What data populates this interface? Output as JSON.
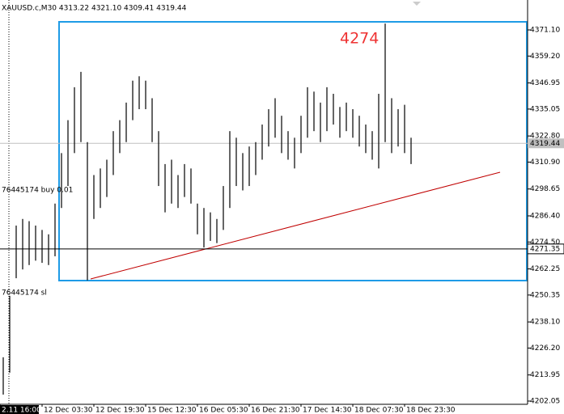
{
  "chart_data": {
    "type": "hilo",
    "title": "XAUUSD.c,M30  4313.22 4321.10 4309.41 4319.44",
    "color": "#000000",
    "lows": [
      4205,
      4215,
      4258,
      4262,
      4264,
      4266,
      4265,
      4264,
      4268,
      4290,
      4300,
      4315,
      4320,
      4257,
      4285,
      4290,
      4295,
      4305,
      4315,
      4320,
      4330,
      4335,
      4335,
      4320,
      4300,
      4288,
      4292,
      4290,
      4295,
      4292,
      4278,
      4272,
      4275,
      4274,
      4280,
      4290,
      4300,
      4298,
      4300,
      4305,
      4312,
      4318,
      4322,
      4315,
      4312,
      4308,
      4315,
      4322,
      4325,
      4320,
      4325,
      4328,
      4322,
      4325,
      4322,
      4318,
      4315,
      4312,
      4308,
      4320,
      4315,
      4318,
      4315,
      4310
    ],
    "highs": [
      4222,
      4250,
      4282,
      4285,
      4284,
      4282,
      4280,
      4278,
      4292,
      4315,
      4330,
      4345,
      4352,
      4320,
      4305,
      4308,
      4312,
      4325,
      4330,
      4338,
      4348,
      4350,
      4348,
      4340,
      4325,
      4310,
      4312,
      4305,
      4310,
      4308,
      4292,
      4290,
      4288,
      4285,
      4300,
      4325,
      4322,
      4315,
      4318,
      4320,
      4328,
      4335,
      4340,
      4332,
      4325,
      4322,
      4332,
      4345,
      4343,
      4338,
      4345,
      4342,
      4336,
      4338,
      4335,
      4332,
      4328,
      4325,
      4342,
      4374,
      4340,
      4335,
      4337,
      4322
    ],
    "ylim": [
      4200.58,
      4384.73
    ],
    "yticks": [
      {
        "value": 4371.1,
        "label": "4371.10"
      },
      {
        "value": 4359.2,
        "label": "4359.20"
      },
      {
        "value": 4346.95,
        "label": "4346.95"
      },
      {
        "value": 4335.05,
        "label": "4335.05"
      },
      {
        "value": 4322.8,
        "label": "4322.80"
      },
      {
        "value": 4310.9,
        "label": "4310.90"
      },
      {
        "value": 4298.65,
        "label": "4298.65"
      },
      {
        "value": 4286.4,
        "label": "4286.40"
      },
      {
        "value": 4274.5,
        "label": "4274.50"
      },
      {
        "value": 4262.25,
        "label": "4262.25"
      },
      {
        "value": 4250.35,
        "label": "4250.35"
      },
      {
        "value": 4238.1,
        "label": "4238.10"
      },
      {
        "value": 4226.2,
        "label": "4226.20"
      },
      {
        "value": 4213.95,
        "label": "4213.95"
      },
      {
        "value": 4202.05,
        "label": "4202.05"
      }
    ],
    "current_price": 4319.44,
    "level_price": 4271.35,
    "x_labels": [
      "2.11 16:00",
      "12 Dec 03:30",
      "12 Dec 19:30",
      "15 Dec 12:30",
      "16 Dec 05:30",
      "16 Dec 21:30",
      "17 Dec 14:30",
      "18 Dec 07:30",
      "18 Dec 23:30"
    ],
    "annotation": "4274",
    "order_buy": "76445174 buy 0.01",
    "order_sl": "76445174 sl"
  }
}
